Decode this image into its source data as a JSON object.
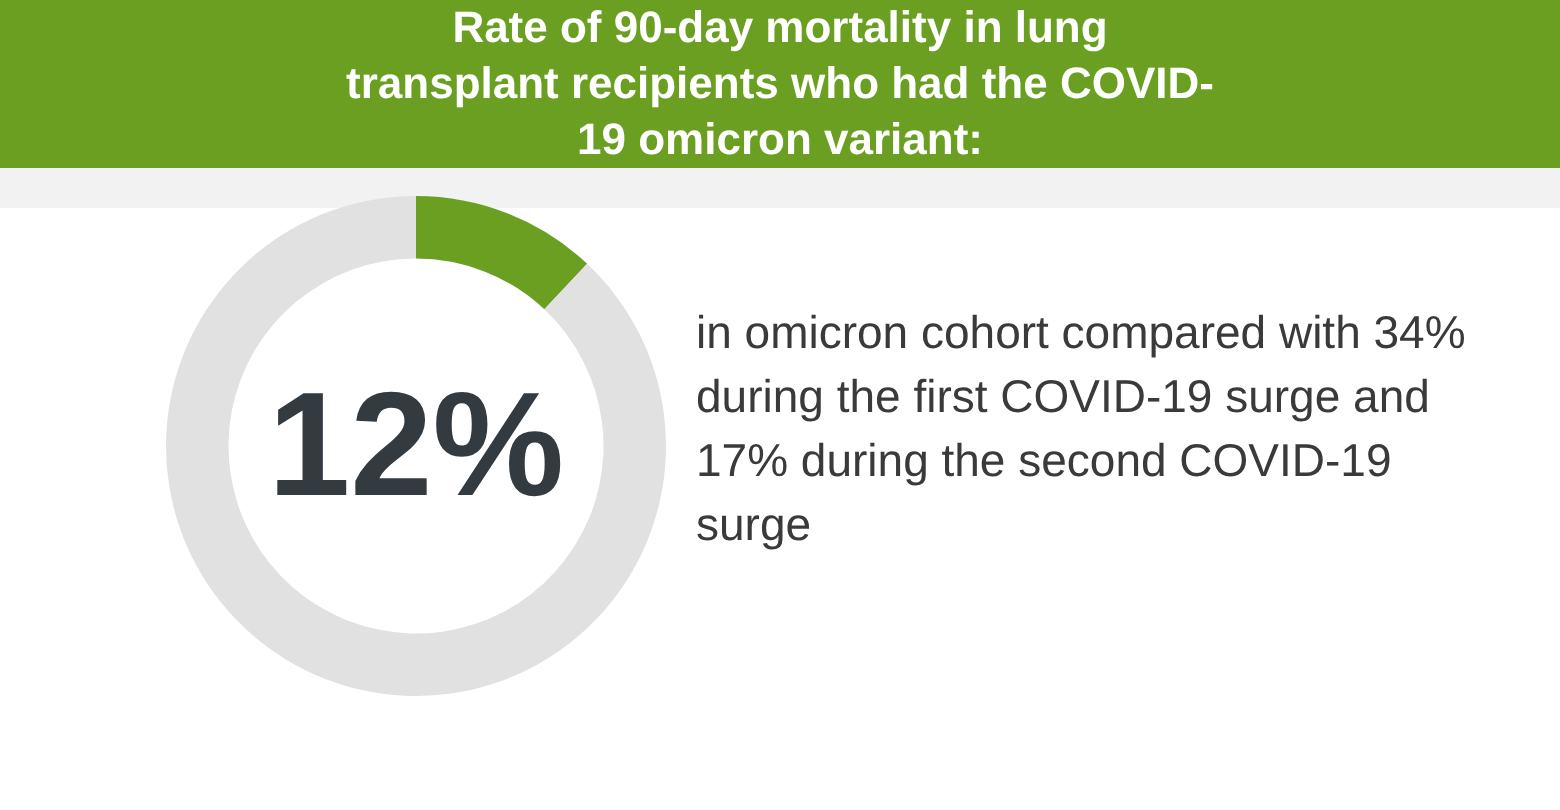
{
  "chart_data": {
    "type": "donut",
    "title": "Rate of 90-day mortality in lung transplant recipients who had the COVID-19 omicron variant:",
    "categories": [
      null,
      null
    ],
    "values": [
      12,
      88
    ],
    "colors": [
      "#6a9f22",
      "#e1e1e1"
    ],
    "value_labels": [
      "12%",
      null
    ],
    "legend": false,
    "annotations": [
      "in omicron cohort compared with 34% during the first COVID-19 surge and 17% during the second COVID-19 surge"
    ]
  }
}
